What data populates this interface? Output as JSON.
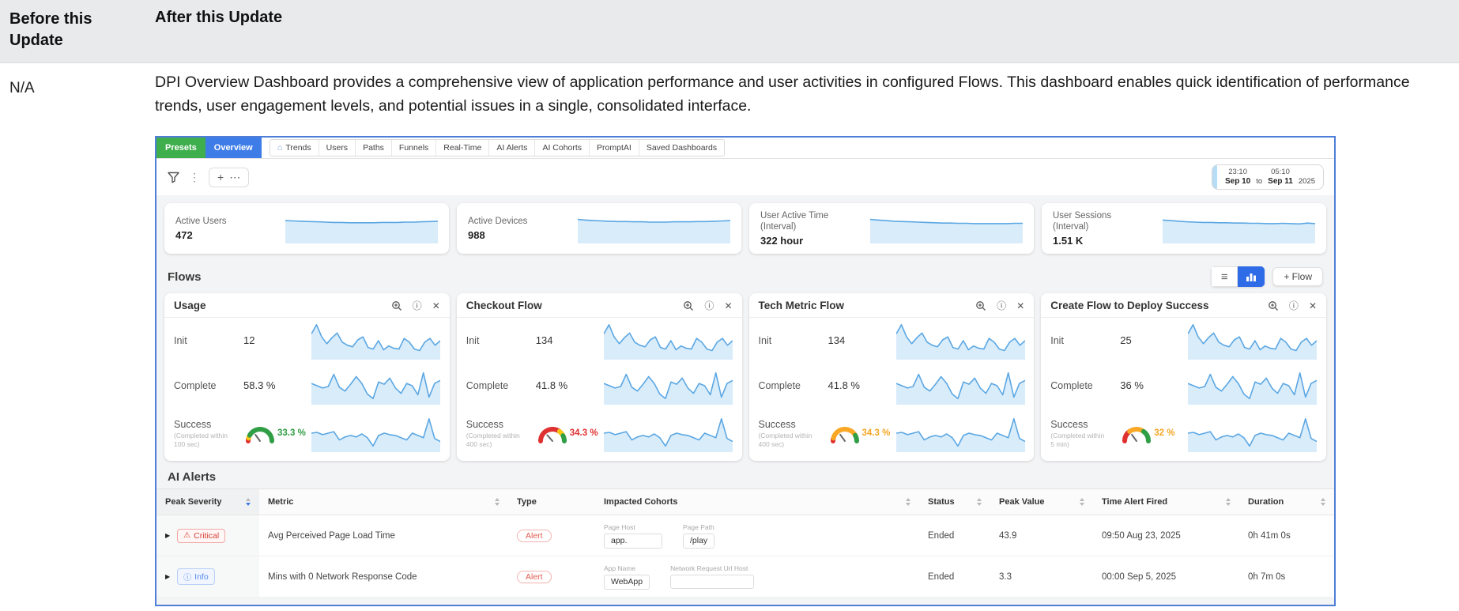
{
  "doc": {
    "before_header": "Before this Update",
    "after_header": "After this Update",
    "before_value": "N/A",
    "description": "DPI Overview Dashboard provides a comprehensive view of application performance and user activities in configured Flows. This dashboard enables quick identification of performance trends, user engagement levels, and potential issues in a single, consolidated interface."
  },
  "icons": {
    "kebab": "⋮",
    "close": "✕",
    "info": "ⓘ",
    "expand": "▶",
    "warning": "⚠",
    "plus": "+",
    "ellipsis": "⋯",
    "home": "⌂",
    "list": "≡"
  },
  "colors": {
    "presets_green": "#3fae4c",
    "overview_blue": "#3e7ce8",
    "frame_blue": "#4f7ed9",
    "spark_line": "#5ba7e3",
    "spark_fill": "#d9ecfa",
    "alert_red": "#e25a50",
    "info_blue": "#5b8def",
    "toggle_blue": "#2e6be6"
  },
  "dashboard": {
    "tabs": {
      "presets": "Presets",
      "overview": "Overview",
      "items": [
        "Trends",
        "Users",
        "Paths",
        "Funnels",
        "Real-Time",
        "AI Alerts",
        "AI Cohorts",
        "PromptAI",
        "Saved Dashboards"
      ]
    },
    "date_range": {
      "start_time": "23:10",
      "end_time": "05:10",
      "start_date": "Sep 10",
      "to_label": "to",
      "end_date": "Sep 11",
      "year": "2025"
    },
    "kpis": [
      {
        "label": "Active Users",
        "sublabel": "",
        "value": "472",
        "spark": [
          76,
          75,
          74,
          73,
          72,
          71,
          70,
          70,
          69,
          69,
          69,
          69,
          70,
          70,
          70,
          71,
          71,
          72,
          73,
          74
        ]
      },
      {
        "label": "Active Devices",
        "sublabel": "",
        "value": "988",
        "spark": [
          80,
          78,
          76,
          75,
          74,
          73,
          73,
          72,
          72,
          71,
          71,
          71,
          72,
          72,
          72,
          73,
          73,
          74,
          75,
          76
        ]
      },
      {
        "label": "User Active Time",
        "sublabel": "(Interval)",
        "value": "322 hour",
        "spark": [
          80,
          78,
          76,
          74,
          73,
          72,
          71,
          70,
          69,
          68,
          68,
          67,
          67,
          66,
          66,
          66,
          66,
          66,
          67,
          67
        ]
      },
      {
        "label": "User Sessions",
        "sublabel": "(Interval)",
        "value": "1.51 K",
        "spark": [
          78,
          76,
          74,
          72,
          71,
          70,
          70,
          69,
          69,
          68,
          68,
          67,
          67,
          66,
          66,
          67,
          66,
          65,
          68,
          66
        ]
      }
    ],
    "flows": {
      "title": "Flows",
      "add_flow_label": "+ Flow",
      "row_labels": {
        "init": "Init",
        "complete": "Complete",
        "success": "Success"
      },
      "sparks": {
        "init": [
          68,
          92,
          60,
          42,
          58,
          70,
          46,
          38,
          34,
          52,
          60,
          32,
          28,
          50,
          26,
          36,
          30,
          28,
          56,
          46,
          28,
          24,
          46,
          56,
          38,
          50
        ],
        "complete": [
          56,
          50,
          44,
          48,
          80,
          46,
          36,
          54,
          74,
          56,
          28,
          16,
          60,
          54,
          70,
          44,
          30,
          56,
          50,
          26,
          84,
          20,
          56,
          64
        ],
        "success": [
          50,
          52,
          46,
          50,
          54,
          32,
          40,
          44,
          40,
          48,
          38,
          16,
          44,
          50,
          46,
          44,
          38,
          32,
          50,
          44,
          38,
          88,
          36,
          28
        ]
      },
      "cards": [
        {
          "title": "Usage",
          "init": "12",
          "complete": "58.3 %",
          "success_note_1": "(Completed within",
          "success_note_2": "100 sec)",
          "success_value": "33.3 %",
          "value_color": "#2f9e44",
          "gauge": {
            "segments": [
              {
                "color": "#e03131",
                "frac": 0.08
              },
              {
                "color": "#f9c513",
                "frac": 0.08
              },
              {
                "color": "#2f9e44",
                "frac": 0.84
              }
            ],
            "needle": 0.3
          }
        },
        {
          "title": "Checkout Flow",
          "init": "134",
          "complete": "41.8 %",
          "success_note_1": "(Completed within",
          "success_note_2": "400 sec)",
          "success_value": "34.3 %",
          "value_color": "#e03131",
          "gauge": {
            "segments": [
              {
                "color": "#e03131",
                "frac": 0.7
              },
              {
                "color": "#f9c513",
                "frac": 0.15
              },
              {
                "color": "#2f9e44",
                "frac": 0.15
              }
            ],
            "needle": 0.27
          }
        },
        {
          "title": "Tech Metric Flow",
          "init": "134",
          "complete": "41.8 %",
          "success_note_1": "(Completed within",
          "success_note_2": "400 sec)",
          "success_value": "34.3 %",
          "value_color": "#f5a623",
          "gauge": {
            "segments": [
              {
                "color": "#e03131",
                "frac": 0.08
              },
              {
                "color": "#f9a825",
                "frac": 0.76
              },
              {
                "color": "#2f9e44",
                "frac": 0.16
              }
            ],
            "needle": 0.3
          }
        },
        {
          "title": "Create Flow to Deploy Success",
          "init": "25",
          "complete": "36 %",
          "success_note_1": "(Completed within",
          "success_note_2": "5 min)",
          "success_value": "32 %",
          "value_color": "#f5a623",
          "gauge": {
            "segments": [
              {
                "color": "#e03131",
                "frac": 0.3
              },
              {
                "color": "#f9a825",
                "frac": 0.4
              },
              {
                "color": "#2f9e44",
                "frac": 0.3
              }
            ],
            "needle": 0.3
          }
        }
      ]
    },
    "alerts": {
      "title": "AI Alerts",
      "columns": [
        {
          "label": "Peak Severity"
        },
        {
          "label": "Metric"
        },
        {
          "label": "Type"
        },
        {
          "label": "Impacted Cohorts"
        },
        {
          "label": "Status"
        },
        {
          "label": "Peak Value"
        },
        {
          "label": "Time Alert Fired"
        },
        {
          "label": "Duration"
        }
      ],
      "rows": [
        {
          "severity": "Critical",
          "metric": "Avg Perceived Page Load Time",
          "type": "Alert",
          "cohorts": [
            {
              "label": "Page Host",
              "value": "app."
            },
            {
              "label": "Page Path",
              "value": "/play"
            }
          ],
          "status": "Ended",
          "peak_value": "43.9",
          "time_fired": "09:50 Aug 23, 2025",
          "duration": "0h 41m 0s"
        },
        {
          "severity": "Info",
          "metric": "Mins with 0 Network Response Code",
          "type": "Alert",
          "cohorts": [
            {
              "label": "App Name",
              "value": "WebApp"
            },
            {
              "label": "Network Request Url Host",
              "value": ""
            }
          ],
          "status": "Ended",
          "peak_value": "3.3",
          "time_fired": "00:00 Sep 5, 2025",
          "duration": "0h 7m 0s"
        }
      ]
    }
  }
}
